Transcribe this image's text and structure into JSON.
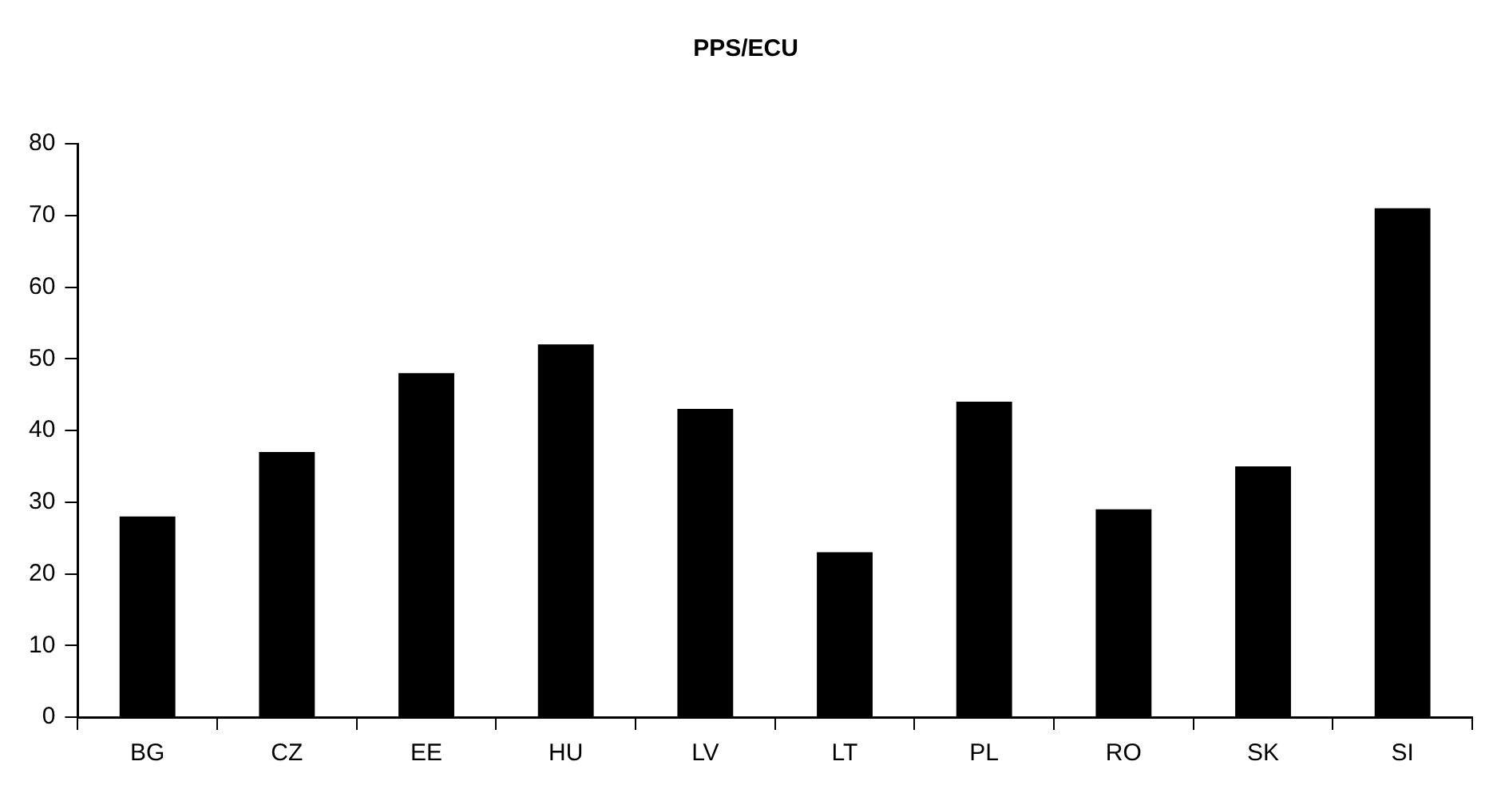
{
  "chart_data": {
    "type": "bar",
    "title": "PPS/ECU",
    "categories": [
      "BG",
      "CZ",
      "EE",
      "HU",
      "LV",
      "LT",
      "PL",
      "RO",
      "SK",
      "SI"
    ],
    "values": [
      28,
      37,
      48,
      52,
      43,
      23,
      44,
      29,
      35,
      71
    ],
    "color": "#000000",
    "ylim": [
      0,
      80
    ],
    "yticks": [
      0,
      10,
      20,
      30,
      40,
      50,
      60,
      70,
      80
    ],
    "grid": false,
    "legend": false
  }
}
